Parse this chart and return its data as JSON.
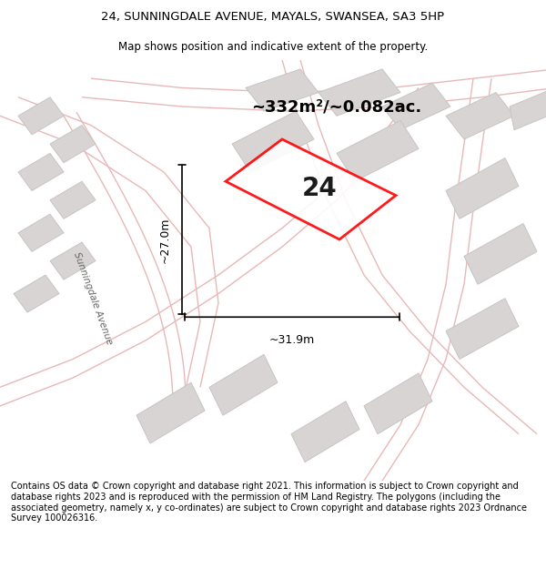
{
  "title_line1": "24, SUNNINGDALE AVENUE, MAYALS, SWANSEA, SA3 5HP",
  "title_line2": "Map shows position and indicative extent of the property.",
  "footer_text": "Contains OS data © Crown copyright and database right 2021. This information is subject to Crown copyright and database rights 2023 and is reproduced with the permission of HM Land Registry. The polygons (including the associated geometry, namely x, y co-ordinates) are subject to Crown copyright and database rights 2023 Ordnance Survey 100026316.",
  "area_label": "~332m²/~0.082ac.",
  "property_number": "24",
  "width_label": "~31.9m",
  "height_label": "~27.0m",
  "street_label": "Sunningdale Avenue",
  "map_bg": "#f2f0f0",
  "plot_color": "#ff0000",
  "road_line_color": "#e8b8b8",
  "building_face": "#d8d4d4",
  "building_edge": "#c8c4c4"
}
